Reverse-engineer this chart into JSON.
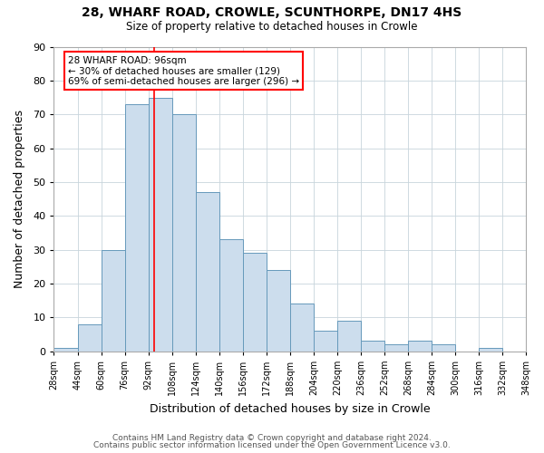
{
  "title": "28, WHARF ROAD, CROWLE, SCUNTHORPE, DN17 4HS",
  "subtitle": "Size of property relative to detached houses in Crowle",
  "xlabel": "Distribution of detached houses by size in Crowle",
  "ylabel": "Number of detached properties",
  "bin_edges": [
    28,
    44,
    60,
    76,
    92,
    108,
    124,
    140,
    156,
    172,
    188,
    204,
    220,
    236,
    252,
    268,
    284,
    300,
    316,
    332,
    348
  ],
  "bar_heights": [
    1,
    8,
    30,
    73,
    75,
    70,
    47,
    33,
    29,
    24,
    14,
    6,
    9,
    3,
    2,
    3,
    2,
    0,
    1,
    0
  ],
  "bar_color": "#ccdded",
  "bar_edge_color": "#6699bb",
  "tick_labels": [
    "28sqm",
    "44sqm",
    "60sqm",
    "76sqm",
    "92sqm",
    "108sqm",
    "124sqm",
    "140sqm",
    "156sqm",
    "172sqm",
    "188sqm",
    "204sqm",
    "220sqm",
    "236sqm",
    "252sqm",
    "268sqm",
    "284sqm",
    "300sqm",
    "316sqm",
    "332sqm",
    "348sqm"
  ],
  "ylim": [
    0,
    90
  ],
  "yticks": [
    0,
    10,
    20,
    30,
    40,
    50,
    60,
    70,
    80,
    90
  ],
  "property_line_x": 96,
  "annotation_title": "28 WHARF ROAD: 96sqm",
  "annotation_line1": "← 30% of detached houses are smaller (129)",
  "annotation_line2": "69% of semi-detached houses are larger (296) →",
  "footer1": "Contains HM Land Registry data © Crown copyright and database right 2024.",
  "footer2": "Contains public sector information licensed under the Open Government Licence v3.0.",
  "bg_color": "#ffffff",
  "plot_bg_color": "#ffffff",
  "grid_color": "#c8d4dc"
}
